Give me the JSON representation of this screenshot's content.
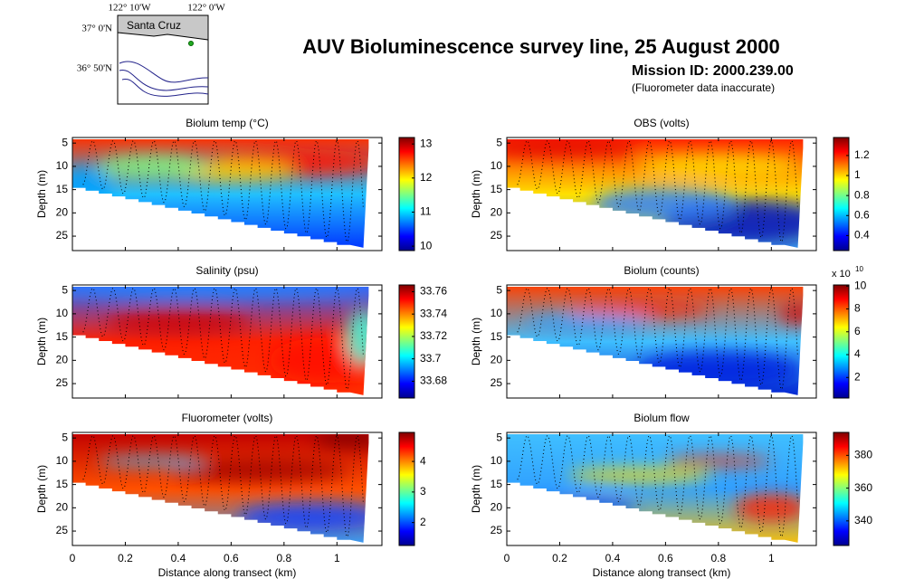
{
  "title": "AUV Bioluminescence survey line, 25 August 2000",
  "subtitle": "Mission ID: 2000.239.00",
  "note": "(Fluorometer data inaccurate)",
  "map": {
    "place": "Santa Cruz",
    "lon_labels": [
      "122° 10'W",
      "122° 0'W"
    ],
    "lat_labels": [
      "37° 0'N",
      "36° 50'N"
    ]
  },
  "chart_data": [
    {
      "type": "heatmap",
      "title": "Biolum temp (°C)",
      "y_label": "Depth (m)",
      "xlim": [
        0,
        1.17
      ],
      "xticks": [
        0,
        0.2,
        0.4,
        0.6,
        0.8,
        1
      ],
      "ylim": [
        3.8,
        28.1
      ],
      "yticks": [
        5,
        10,
        15,
        20,
        25
      ],
      "clim": [
        9.87,
        13.19
      ],
      "cticks": [
        10,
        11,
        12,
        13
      ]
    },
    {
      "type": "heatmap",
      "title": "OBS (volts)",
      "y_label": "Depth (m)",
      "xlim": [
        0,
        1.17
      ],
      "xticks": [
        0,
        0.2,
        0.4,
        0.6,
        0.8,
        1
      ],
      "ylim": [
        3.8,
        28.1
      ],
      "yticks": [
        5,
        10,
        15,
        20,
        25
      ],
      "clim": [
        0.25,
        1.38
      ],
      "cticks": [
        0.4,
        0.6,
        0.8,
        1,
        1.2
      ]
    },
    {
      "type": "heatmap",
      "title": "Salinity (psu)",
      "y_label": "Depth (m)",
      "xlim": [
        0,
        1.17
      ],
      "xticks": [
        0,
        0.2,
        0.4,
        0.6,
        0.8,
        1
      ],
      "ylim": [
        3.8,
        28.1
      ],
      "yticks": [
        5,
        10,
        15,
        20,
        25
      ],
      "clim": [
        33.665,
        33.766
      ],
      "cticks": [
        33.68,
        33.7,
        33.72,
        33.74,
        33.76
      ]
    },
    {
      "type": "heatmap",
      "title": "Biolum (counts)",
      "y_label": "Depth (m)",
      "xlim": [
        0,
        1.17
      ],
      "xticks": [
        0,
        0.2,
        0.4,
        0.6,
        0.8,
        1
      ],
      "ylim": [
        3.8,
        28.1
      ],
      "yticks": [
        5,
        10,
        15,
        20,
        25
      ],
      "clim": [
        0.2,
        10.1
      ],
      "cticks": [
        2,
        4,
        6,
        8,
        10
      ],
      "colorbar_multiplier": "x 10",
      "colorbar_power": "10"
    },
    {
      "type": "heatmap",
      "title": "Fluorometer (volts)",
      "y_label": "Depth (m)",
      "x_label": "Distance along transect (km)",
      "xlim": [
        0,
        1.17
      ],
      "xticks": [
        0,
        0.2,
        0.4,
        0.6,
        0.8,
        1
      ],
      "ylim": [
        3.8,
        28.1
      ],
      "yticks": [
        5,
        10,
        15,
        20,
        25
      ],
      "clim": [
        1.25,
        4.95
      ],
      "cticks": [
        2,
        3,
        4
      ]
    },
    {
      "type": "heatmap",
      "title": "Biolum flow",
      "y_label": "Depth (m)",
      "x_label": "Distance along transect (km)",
      "xlim": [
        0,
        1.17
      ],
      "xticks": [
        0,
        0.2,
        0.4,
        0.6,
        0.8,
        1
      ],
      "ylim": [
        3.8,
        28.1
      ],
      "yticks": [
        5,
        10,
        15,
        20,
        25
      ],
      "clim": [
        325,
        394
      ],
      "cticks": [
        340,
        360,
        380
      ]
    }
  ]
}
